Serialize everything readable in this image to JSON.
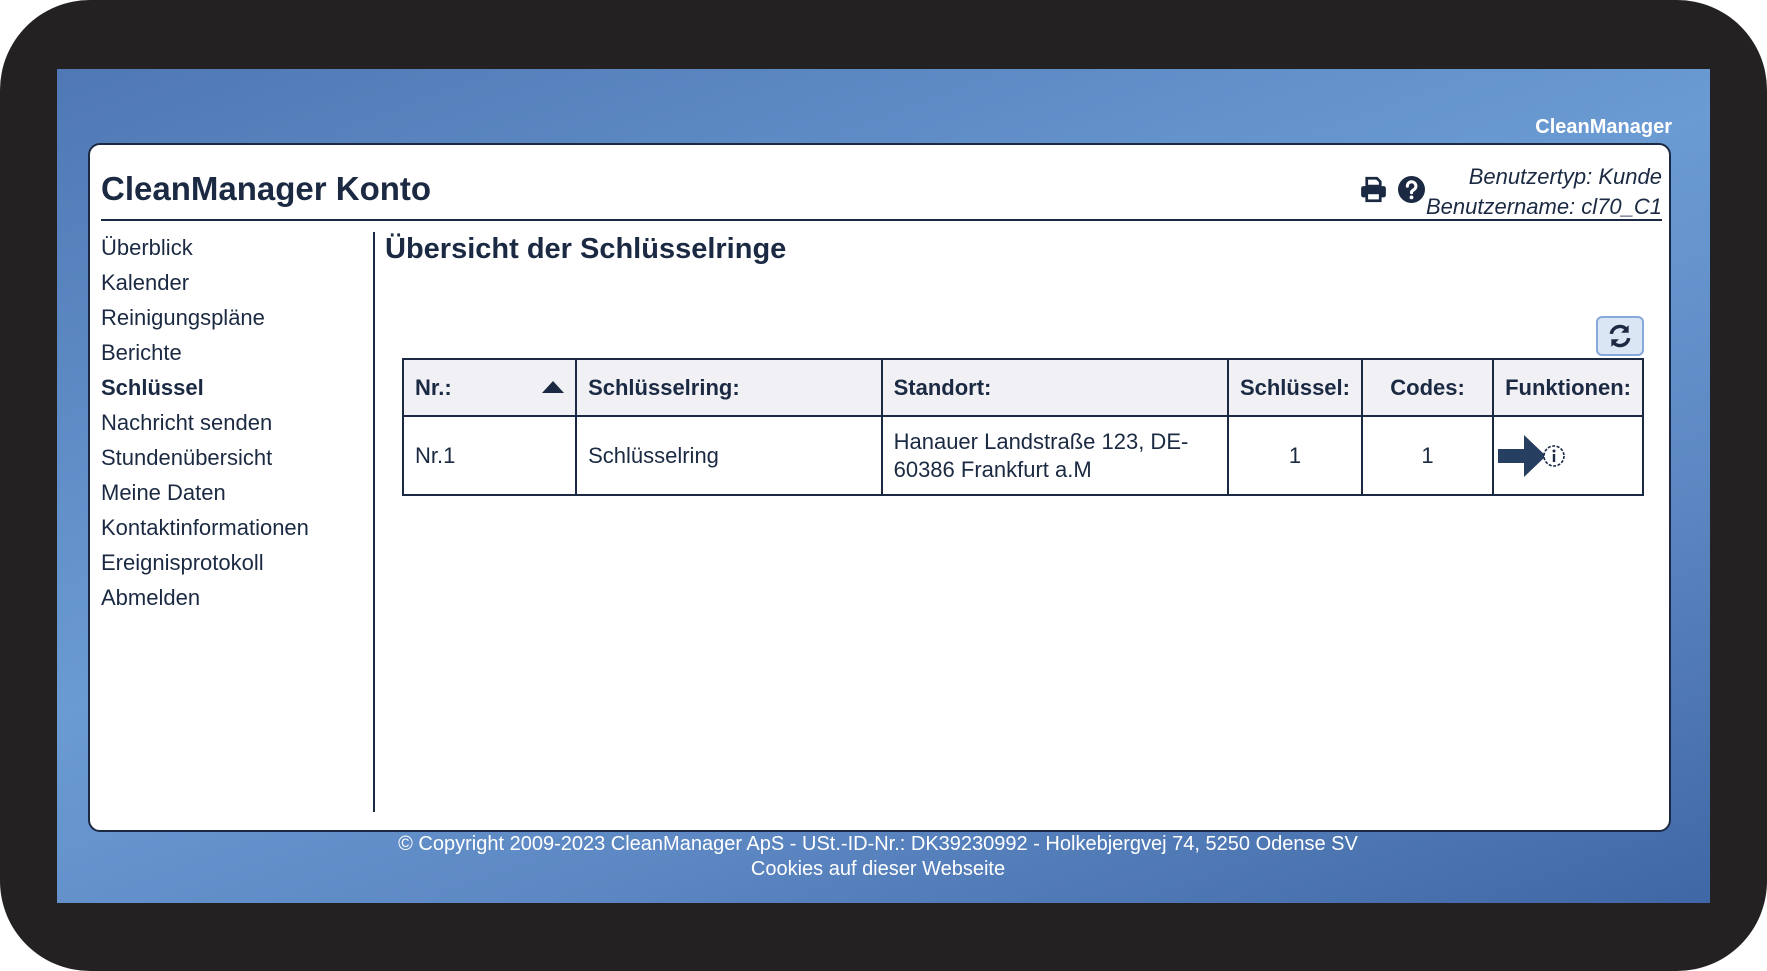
{
  "brand": "CleanManager",
  "header": {
    "title": "CleanManager Konto",
    "user_type": "Benutzertyp: Kunde",
    "username": "Benutzername: cl70_C1",
    "icons": [
      "print-icon",
      "help-icon"
    ]
  },
  "sidebar": {
    "items": [
      {
        "label": "Überblick"
      },
      {
        "label": "Kalender"
      },
      {
        "label": "Reinigungspläne"
      },
      {
        "label": "Berichte"
      },
      {
        "label": "Schlüssel",
        "active": true
      },
      {
        "label": "Nachricht senden"
      },
      {
        "label": "Stundenübersicht"
      },
      {
        "label": "Meine Daten"
      },
      {
        "label": "Kontaktinformationen"
      },
      {
        "label": "Ereignisprotokoll"
      },
      {
        "label": "Abmelden"
      }
    ]
  },
  "main": {
    "heading": "Übersicht der Schlüsselringe",
    "table": {
      "columns": [
        "Nr.:",
        "Schlüsselring:",
        "Standort:",
        "Schlüssel:",
        "Codes:",
        "Funktionen:"
      ],
      "sort": {
        "column": "Nr.:",
        "direction": "ascending"
      },
      "rows": [
        {
          "nr": "Nr.1",
          "ring": "Schlüsselring",
          "location_line1": "Hanauer Landstraße 123, DE-",
          "location_line2": "60386 Frankfurt a.M",
          "keys": "1",
          "codes": "1",
          "functions": [
            "arrow-right-icon",
            "info-icon"
          ]
        }
      ]
    }
  },
  "footer": {
    "copyright": "© Copyright 2009-2023 CleanManager ApS - USt.-ID-Nr.: DK39230992 - Holkebjergvej 74, 5250 Odense SV",
    "cookies": "Cookies auf dieser Webseite"
  },
  "colors": {
    "text": "#1b2a42",
    "background": "#6b9bd3",
    "header_bg": "#f0f0f5",
    "button_bg": "#dbe6f5"
  }
}
